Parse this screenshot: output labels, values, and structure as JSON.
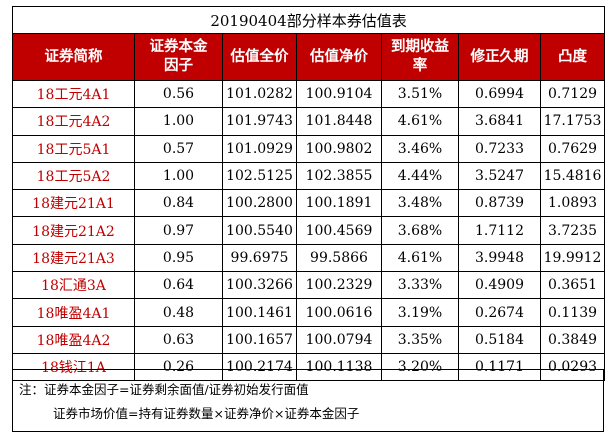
{
  "title": "20190404部分样本券估值表",
  "columns": [
    "证券简称",
    "证券本金因子",
    "估值全价",
    "估值净价",
    "到期收益率",
    "修正久期",
    "凸度"
  ],
  "rows": [
    [
      "18工元4A1",
      "0.56",
      "101.0282",
      "100.9104",
      "3.51%",
      "0.6994",
      "0.7129"
    ],
    [
      "18工元4A2",
      "1.00",
      "101.9743",
      "101.8448",
      "4.61%",
      "3.6841",
      "17.1753"
    ],
    [
      "18工元5A1",
      "0.57",
      "101.0929",
      "100.9802",
      "3.46%",
      "0.7233",
      "0.7629"
    ],
    [
      "18工元5A2",
      "1.00",
      "102.5125",
      "102.3855",
      "4.44%",
      "3.5247",
      "15.4816"
    ],
    [
      "18建元21A1",
      "0.84",
      "100.2800",
      "100.1891",
      "3.48%",
      "0.8739",
      "1.0893"
    ],
    [
      "18建元21A2",
      "0.97",
      "100.5540",
      "100.4569",
      "3.68%",
      "1.7112",
      "3.7235"
    ],
    [
      "18建元21A3",
      "0.95",
      "99.6975",
      "99.5866",
      "4.61%",
      "3.9948",
      "19.9912"
    ],
    [
      "18汇通3A",
      "0.64",
      "100.3266",
      "100.2329",
      "3.33%",
      "0.4909",
      "0.3651"
    ],
    [
      "18唯盈4A1",
      "0.48",
      "100.1461",
      "100.0616",
      "3.19%",
      "0.2674",
      "0.1139"
    ],
    [
      "18唯盈4A2",
      "0.63",
      "100.1657",
      "100.0794",
      "3.35%",
      "0.5184",
      "0.3849"
    ],
    [
      "18钱江1A",
      "0.26",
      "100.2174",
      "100.1138",
      "3.20%",
      "0.1171",
      "0.0293"
    ]
  ],
  "notes": {
    "line1": "注：证券本金因子=证券剩余面值/证券初始发行面值",
    "line2": "证券市场价值=持有证券数量×证券净价×证券本金因子"
  },
  "colors": {
    "header_bg": "#c00000",
    "header_text": "#ffffff",
    "name_text": "#c00000"
  }
}
